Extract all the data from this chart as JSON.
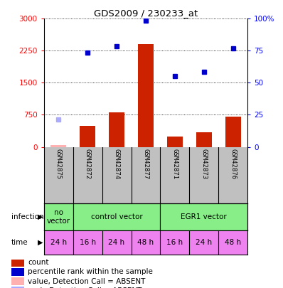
{
  "title": "GDS2009 / 230233_at",
  "samples": [
    "GSM42875",
    "GSM42872",
    "GSM42874",
    "GSM42877",
    "GSM42871",
    "GSM42873",
    "GSM42876"
  ],
  "bar_values": [
    50,
    500,
    800,
    2400,
    250,
    350,
    700
  ],
  "bar_absent": [
    true,
    false,
    false,
    false,
    false,
    false,
    false
  ],
  "dot_values": [
    null,
    2200,
    2350,
    2950,
    1650,
    1750,
    2300
  ],
  "dot_absent": [
    650,
    null,
    null,
    null,
    null,
    null,
    null
  ],
  "ylim_left": [
    0,
    3000
  ],
  "ylim_right": [
    0,
    100
  ],
  "yticks_left": [
    0,
    750,
    1500,
    2250,
    3000
  ],
  "yticks_right": [
    0,
    25,
    50,
    75,
    100
  ],
  "time_labels": [
    "24 h",
    "16 h",
    "24 h",
    "48 h",
    "16 h",
    "24 h",
    "48 h"
  ],
  "time_color": "#ee82ee",
  "bar_color": "#cc2200",
  "bar_absent_color": "#ffb0b0",
  "dot_color": "#0000cc",
  "dot_absent_color": "#aaaaff",
  "bg_color": "#c0c0c0",
  "infection_spans": [
    {
      "start": 0,
      "end": 1,
      "color": "#88ee88",
      "label": "no\nvector"
    },
    {
      "start": 1,
      "end": 4,
      "color": "#88ee88",
      "label": "control vector"
    },
    {
      "start": 4,
      "end": 7,
      "color": "#88ee88",
      "label": "EGR1 vector"
    }
  ],
  "legend_items": [
    {
      "color": "#cc2200",
      "label": "count"
    },
    {
      "color": "#0000cc",
      "label": "percentile rank within the sample"
    },
    {
      "color": "#ffb0b0",
      "label": "value, Detection Call = ABSENT"
    },
    {
      "color": "#aaaaff",
      "label": "rank, Detection Call = ABSENT"
    }
  ]
}
